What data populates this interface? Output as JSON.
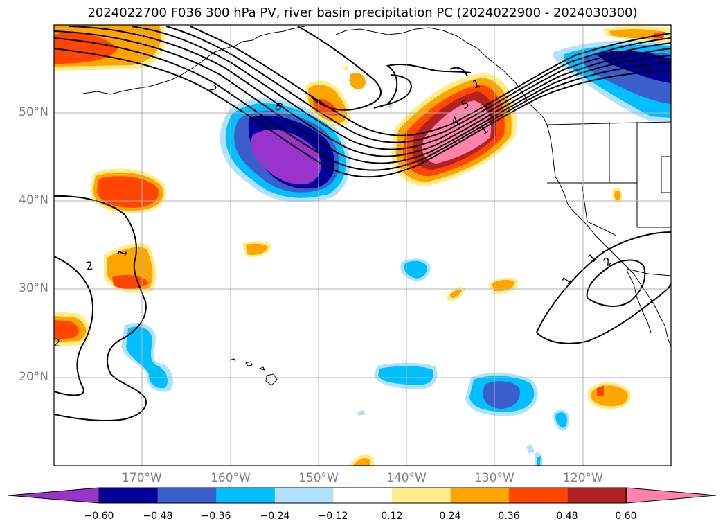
{
  "title": "2024022700 F036 300 hPa PV, river basin precipitation PC (2024022900 - 2024030300)",
  "lat_labels": [
    "50°N",
    "40°N",
    "30°N",
    "20°N"
  ],
  "lon_labels": [
    "170°W",
    "160°W",
    "150°W",
    "140°W",
    "130°W",
    "120°W"
  ],
  "colorbar": {
    "ticks": [
      "−0.60",
      "−0.48",
      "−0.36",
      "−0.24",
      "−0.12",
      "0.12",
      "0.24",
      "0.36",
      "0.48",
      "0.60"
    ],
    "colors": [
      "#9933cc",
      "#000099",
      "#3a5fcd",
      "#00bfff",
      "#b0e2ff",
      "#ffffff",
      "#ffec8b",
      "#ffa500",
      "#ff4500",
      "#b22222",
      "#ff82ab"
    ]
  },
  "contour_labels": [
    "2",
    "6",
    "4",
    "1",
    "5",
    "2",
    "1",
    "2",
    "1",
    "1",
    "2",
    "1"
  ]
}
